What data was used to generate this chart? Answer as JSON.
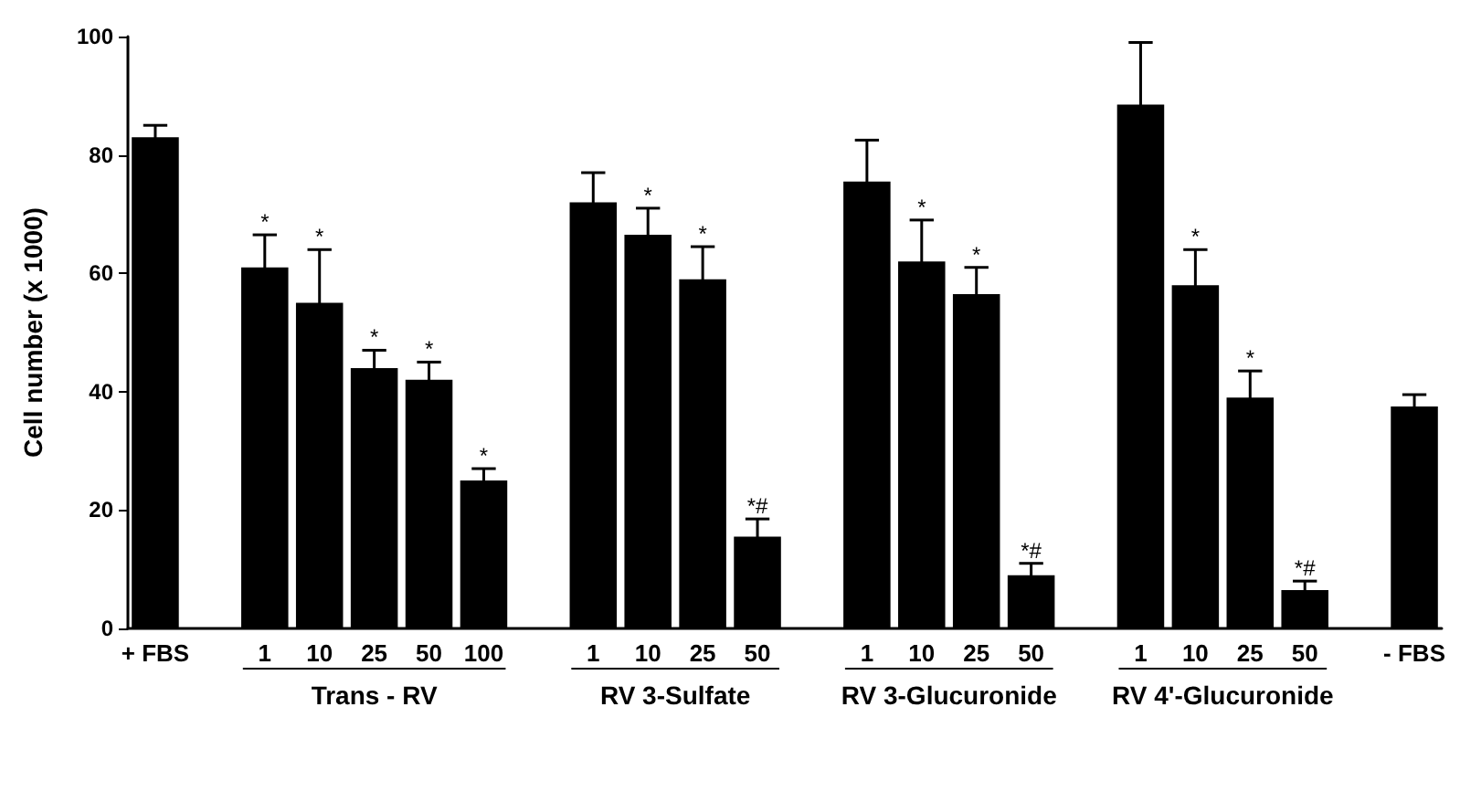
{
  "chart_data": {
    "type": "bar",
    "ylabel": "Cell number (x 1000)",
    "categories": [
      "+ FBS",
      null,
      "1",
      "10",
      "25",
      "50",
      "100",
      null,
      "1",
      "10",
      "25",
      "50",
      null,
      "1",
      "10",
      "25",
      "50",
      null,
      "1",
      "10",
      "25",
      "50",
      null,
      "- FBS"
    ],
    "values": [
      83,
      null,
      61,
      55,
      44,
      42,
      25,
      null,
      72,
      66.5,
      59,
      15.5,
      null,
      75.5,
      62,
      56.5,
      9,
      null,
      88.5,
      58,
      39,
      6.5,
      null,
      37.5
    ],
    "errors": [
      2,
      null,
      5.5,
      9,
      3,
      3,
      2,
      null,
      5,
      4.5,
      5.5,
      3,
      null,
      7,
      7,
      4.5,
      2,
      null,
      10.5,
      6,
      4.5,
      1.5,
      null,
      2
    ],
    "value_labels": [
      null,
      null,
      "*",
      "*",
      "*",
      "*",
      "*",
      null,
      null,
      "*",
      "*",
      "*#",
      null,
      null,
      "*",
      "*",
      "*#",
      null,
      null,
      "*",
      "*",
      "*#",
      null,
      null
    ],
    "color": "#000000",
    "annotations": [
      "Trans - RV",
      "RV 3-Sulfate",
      "RV 3-Glucuronide",
      "RV 4'-Glucuronide"
    ],
    "ylim": [
      0,
      100
    ],
    "yticks": [
      0,
      20,
      40,
      60,
      80,
      100
    ],
    "grid": false
  }
}
